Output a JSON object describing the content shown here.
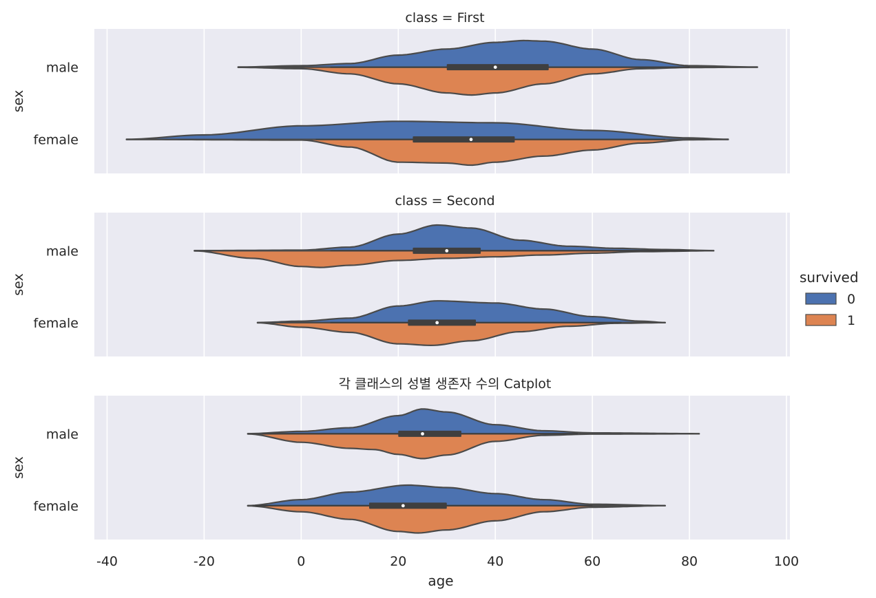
{
  "chart_data": {
    "type": "violin",
    "xlabel": "age",
    "ylabel": "sex",
    "xlim": [
      -40,
      100
    ],
    "xticks": [
      -40,
      -20,
      0,
      20,
      40,
      60,
      80,
      100
    ],
    "xtick_labels": [
      "-40",
      "-20",
      "0",
      "20",
      "40",
      "60",
      "80",
      "100"
    ],
    "grid": true,
    "split": true,
    "categories": [
      "male",
      "female"
    ],
    "legend": {
      "title": "survived",
      "position": "right",
      "entries": [
        {
          "label": "0",
          "color": "#4c72b0"
        },
        {
          "label": "1",
          "color": "#dd8452"
        }
      ]
    },
    "facets": [
      {
        "title": "class = First",
        "violins": {
          "male": {
            "box": {
              "q1": 30,
              "median": 40,
              "q3": 51,
              "whisker_low": 6,
              "whisker_high": 80
            },
            "survived_0": [
              [
                -13,
                0.005
              ],
              [
                0,
                0.05
              ],
              [
                10,
                0.12
              ],
              [
                20,
                0.4
              ],
              [
                30,
                0.6
              ],
              [
                40,
                0.82
              ],
              [
                46,
                0.88
              ],
              [
                50,
                0.86
              ],
              [
                60,
                0.6
              ],
              [
                70,
                0.25
              ],
              [
                80,
                0.05
              ],
              [
                94,
                0.005
              ]
            ],
            "survived_1": [
              [
                -13,
                0.005
              ],
              [
                0,
                0.05
              ],
              [
                10,
                0.22
              ],
              [
                20,
                0.55
              ],
              [
                30,
                0.85
              ],
              [
                35,
                0.92
              ],
              [
                40,
                0.85
              ],
              [
                50,
                0.55
              ],
              [
                60,
                0.22
              ],
              [
                70,
                0.05
              ],
              [
                80,
                0.01
              ],
              [
                94,
                0.0
              ]
            ]
          },
          "female": {
            "box": {
              "q1": 23,
              "median": 35,
              "q3": 44,
              "whisker_low": 3,
              "whisker_high": 75
            },
            "survived_0": [
              [
                -36,
                0.005
              ],
              [
                -20,
                0.15
              ],
              [
                0,
                0.45
              ],
              [
                20,
                0.6
              ],
              [
                40,
                0.55
              ],
              [
                60,
                0.3
              ],
              [
                80,
                0.05
              ],
              [
                88,
                0.005
              ]
            ],
            "survived_1": [
              [
                -36,
                0.0
              ],
              [
                0,
                0.02
              ],
              [
                10,
                0.25
              ],
              [
                20,
                0.75
              ],
              [
                30,
                0.78
              ],
              [
                35,
                0.85
              ],
              [
                40,
                0.75
              ],
              [
                50,
                0.55
              ],
              [
                60,
                0.35
              ],
              [
                70,
                0.12
              ],
              [
                80,
                0.01
              ],
              [
                88,
                0.0
              ]
            ]
          }
        }
      },
      {
        "title": "class = Second",
        "violins": {
          "male": {
            "box": {
              "q1": 23,
              "median": 30,
              "q3": 37,
              "whisker_low": 6,
              "whisker_high": 80
            },
            "survived_0": [
              [
                -22,
                0.005
              ],
              [
                0,
                0.02
              ],
              [
                10,
                0.12
              ],
              [
                20,
                0.55
              ],
              [
                28,
                0.85
              ],
              [
                35,
                0.75
              ],
              [
                45,
                0.35
              ],
              [
                55,
                0.15
              ],
              [
                65,
                0.08
              ],
              [
                75,
                0.04
              ],
              [
                85,
                0.005
              ]
            ],
            "survived_1": [
              [
                -22,
                0.005
              ],
              [
                -10,
                0.25
              ],
              [
                0,
                0.52
              ],
              [
                4,
                0.55
              ],
              [
                10,
                0.48
              ],
              [
                20,
                0.32
              ],
              [
                30,
                0.25
              ],
              [
                40,
                0.2
              ],
              [
                50,
                0.14
              ],
              [
                60,
                0.08
              ],
              [
                70,
                0.03
              ],
              [
                85,
                0.0
              ]
            ]
          },
          "female": {
            "box": {
              "q1": 22,
              "median": 28,
              "q3": 36,
              "whisker_low": 6,
              "whisker_high": 66
            },
            "survived_0": [
              [
                -9,
                0.005
              ],
              [
                0,
                0.05
              ],
              [
                10,
                0.15
              ],
              [
                20,
                0.55
              ],
              [
                28,
                0.72
              ],
              [
                40,
                0.65
              ],
              [
                50,
                0.45
              ],
              [
                60,
                0.2
              ],
              [
                70,
                0.05
              ],
              [
                75,
                0.005
              ]
            ],
            "survived_1": [
              [
                -9,
                0.005
              ],
              [
                0,
                0.15
              ],
              [
                10,
                0.32
              ],
              [
                20,
                0.7
              ],
              [
                27,
                0.75
              ],
              [
                35,
                0.6
              ],
              [
                45,
                0.3
              ],
              [
                55,
                0.12
              ],
              [
                65,
                0.02
              ],
              [
                75,
                0.0
              ]
            ]
          }
        }
      },
      {
        "title": "각 클래스의 성별 생존자 수의 Catplot",
        "violins": {
          "male": {
            "box": {
              "q1": 20,
              "median": 25,
              "q3": 33,
              "whisker_low": -8,
              "whisker_high": 57
            },
            "survived_0": [
              [
                -11,
                0.005
              ],
              [
                0,
                0.08
              ],
              [
                10,
                0.2
              ],
              [
                20,
                0.6
              ],
              [
                25,
                0.82
              ],
              [
                30,
                0.72
              ],
              [
                40,
                0.3
              ],
              [
                50,
                0.1
              ],
              [
                60,
                0.03
              ],
              [
                82,
                0.005
              ]
            ],
            "survived_1": [
              [
                -11,
                0.005
              ],
              [
                0,
                0.28
              ],
              [
                10,
                0.48
              ],
              [
                15,
                0.52
              ],
              [
                20,
                0.68
              ],
              [
                25,
                0.82
              ],
              [
                30,
                0.7
              ],
              [
                40,
                0.25
              ],
              [
                50,
                0.05
              ],
              [
                60,
                0.01
              ],
              [
                82,
                0.0
              ]
            ]
          },
          "female": {
            "box": {
              "q1": 14,
              "median": 21,
              "q3": 30,
              "whisker_low": -10,
              "whisker_high": 60
            },
            "survived_0": [
              [
                -11,
                0.005
              ],
              [
                0,
                0.2
              ],
              [
                10,
                0.45
              ],
              [
                22,
                0.68
              ],
              [
                30,
                0.6
              ],
              [
                40,
                0.4
              ],
              [
                50,
                0.2
              ],
              [
                60,
                0.05
              ],
              [
                75,
                0.005
              ]
            ],
            "survived_1": [
              [
                -11,
                0.005
              ],
              [
                0,
                0.2
              ],
              [
                10,
                0.45
              ],
              [
                20,
                0.85
              ],
              [
                24,
                0.9
              ],
              [
                30,
                0.8
              ],
              [
                40,
                0.5
              ],
              [
                50,
                0.2
              ],
              [
                60,
                0.05
              ],
              [
                75,
                0.0
              ]
            ]
          }
        }
      }
    ]
  }
}
